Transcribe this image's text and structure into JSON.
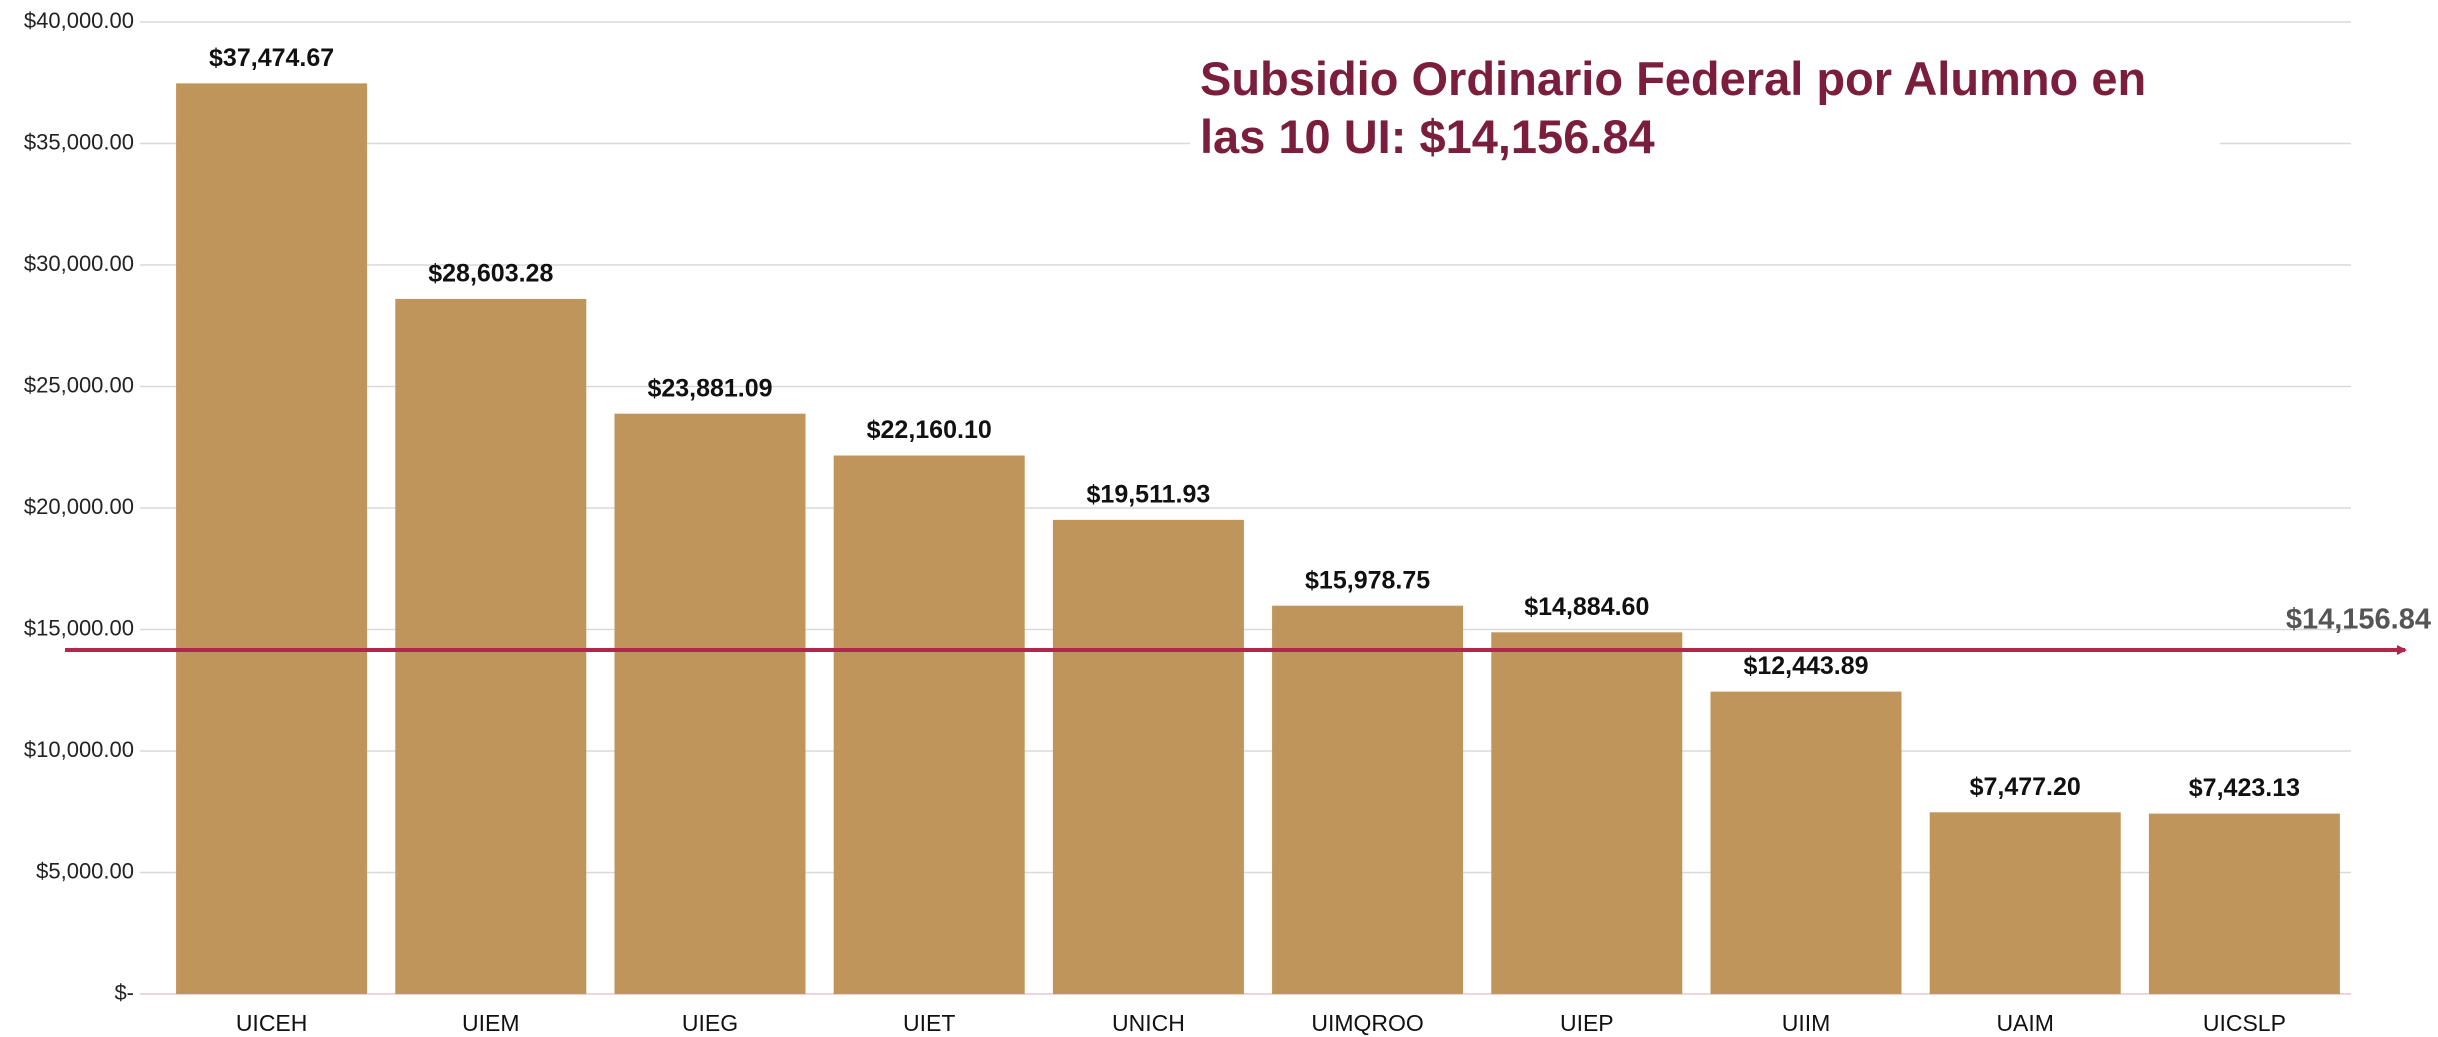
{
  "chart_data": {
    "type": "bar",
    "title": "Subsidio Ordinario Federal por Alumno en las 10 UI: $14,156.84",
    "categories": [
      "UICEH",
      "UIEM",
      "UIEG",
      "UIET",
      "UNICH",
      "UIMQROO",
      "UIEP",
      "UIIM",
      "UAIM",
      "UICSLP"
    ],
    "values": [
      37474.67,
      28603.28,
      23881.09,
      22160.1,
      19511.93,
      15978.75,
      14884.6,
      12443.89,
      7477.2,
      7423.13
    ],
    "value_labels": [
      "$37,474.67",
      "$28,603.28",
      "$23,881.09",
      "$22,160.10",
      "$19,511.93",
      "$15,978.75",
      "$14,884.60",
      "$12,443.89",
      "$7,477.20",
      "$7,423.13"
    ],
    "color": "#bf955b",
    "ylim": [
      0,
      40000
    ],
    "yticks": [
      {
        "value": 0,
        "label": "$-"
      },
      {
        "value": 5000,
        "label": "$5,000.00"
      },
      {
        "value": 10000,
        "label": "$10,000.00"
      },
      {
        "value": 15000,
        "label": "$15,000.00"
      },
      {
        "value": 20000,
        "label": "$20,000.00"
      },
      {
        "value": 25000,
        "label": "$25,000.00"
      },
      {
        "value": 30000,
        "label": "$30,000.00"
      },
      {
        "value": 35000,
        "label": "$35,000.00"
      },
      {
        "value": 40000,
        "label": "$40,000.00"
      }
    ],
    "grid": true,
    "reference_line": {
      "value": 14156.84,
      "label": "$14,156.84",
      "color": "#b3254a"
    }
  }
}
